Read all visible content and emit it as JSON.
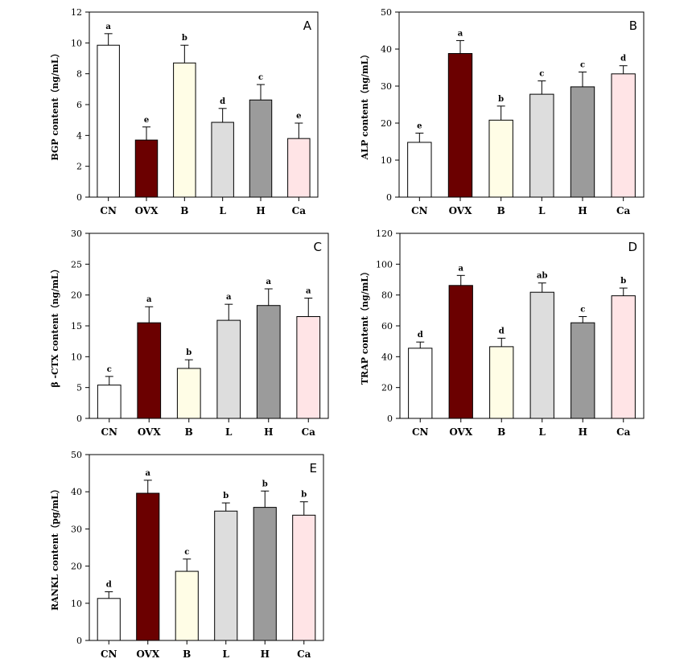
{
  "figure": {
    "categories": [
      "CN",
      "OVX",
      "B",
      "L",
      "H",
      "Ca"
    ],
    "colors": {
      "CN": "#ffffff",
      "OVX": "#6b0000",
      "B": "#fffde6",
      "L": "#dddddd",
      "H": "#9b9b9b",
      "Ca": "#ffe4e6"
    }
  },
  "chart_data": [
    {
      "panel": "A",
      "type": "bar",
      "ylabel": "BGP content（ng/mL）",
      "categories": [
        "CN",
        "OVX",
        "B",
        "L",
        "H",
        "Ca"
      ],
      "values": [
        9.85,
        3.7,
        8.7,
        4.85,
        6.3,
        3.8
      ],
      "errors": [
        0.75,
        0.85,
        1.15,
        0.9,
        1.0,
        1.0
      ],
      "letters": [
        "a",
        "e",
        "b",
        "d",
        "c",
        "e"
      ],
      "ylim": [
        0,
        12
      ],
      "yticks": [
        0,
        2,
        4,
        6,
        8,
        10,
        12
      ]
    },
    {
      "panel": "B",
      "type": "bar",
      "ylabel": "ALP content（ng/mL）",
      "categories": [
        "CN",
        "OVX",
        "B",
        "L",
        "H",
        "Ca"
      ],
      "values": [
        14.8,
        38.8,
        20.8,
        27.8,
        29.8,
        33.3
      ],
      "errors": [
        2.5,
        3.5,
        3.8,
        3.6,
        4.0,
        2.2
      ],
      "letters": [
        "e",
        "a",
        "b",
        "c",
        "c",
        "d"
      ],
      "ylim": [
        0,
        50
      ],
      "yticks": [
        0,
        10,
        20,
        30,
        40,
        50
      ]
    },
    {
      "panel": "C",
      "type": "bar",
      "ylabel": "β -CTX content（ng/mL）",
      "categories": [
        "CN",
        "OVX",
        "B",
        "L",
        "H",
        "Ca"
      ],
      "values": [
        5.4,
        15.5,
        8.1,
        15.9,
        18.3,
        16.5
      ],
      "errors": [
        1.4,
        2.6,
        1.4,
        2.6,
        2.7,
        3.0
      ],
      "letters": [
        "c",
        "a",
        "b",
        "a",
        "a",
        "a"
      ],
      "ylim": [
        0,
        30
      ],
      "yticks": [
        0,
        5,
        10,
        15,
        20,
        25,
        30
      ]
    },
    {
      "panel": "D",
      "type": "bar",
      "ylabel": "TRAP content（ng/mL）",
      "categories": [
        "CN",
        "OVX",
        "B",
        "L",
        "H",
        "Ca"
      ],
      "values": [
        45.5,
        86.2,
        46.5,
        81.8,
        62.0,
        79.5
      ],
      "errors": [
        4.0,
        6.5,
        5.5,
        6.0,
        4.0,
        5.0
      ],
      "letters": [
        "d",
        "a",
        "d",
        "ab",
        "c",
        "b"
      ],
      "ylim": [
        0,
        120
      ],
      "yticks": [
        0,
        20,
        40,
        60,
        80,
        100,
        120
      ]
    },
    {
      "panel": "E",
      "type": "bar",
      "ylabel": "RANKL content（pg/mL）",
      "categories": [
        "CN",
        "OVX",
        "B",
        "L",
        "H",
        "Ca"
      ],
      "values": [
        11.3,
        39.6,
        18.6,
        34.8,
        35.8,
        33.7
      ],
      "errors": [
        1.8,
        3.5,
        3.3,
        2.2,
        4.4,
        3.6
      ],
      "letters": [
        "d",
        "a",
        "c",
        "b",
        "b",
        "b"
      ],
      "ylim": [
        0,
        50
      ],
      "yticks": [
        0,
        10,
        20,
        30,
        40,
        50
      ]
    }
  ]
}
